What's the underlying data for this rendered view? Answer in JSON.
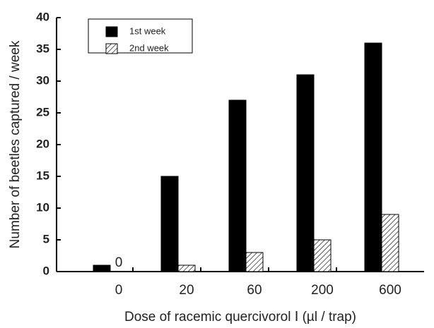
{
  "chart_data": {
    "type": "bar",
    "x_label": "Dose of racemic quercivorol Ⅰ (µl / trap)",
    "y_label": "Number of beetles captured / week",
    "categories": [
      "0",
      "20",
      "60",
      "200",
      "600"
    ],
    "series": [
      {
        "name": "1st week",
        "color": "#000000",
        "values": [
          1,
          15,
          27,
          31,
          36
        ]
      },
      {
        "name": "2nd week",
        "color": "hatched",
        "values": [
          0,
          1,
          3,
          5,
          9
        ]
      }
    ],
    "ylim": [
      0,
      40
    ],
    "yticks": [
      0,
      5,
      10,
      15,
      20,
      25,
      30,
      35,
      40
    ],
    "legend": "upper-left"
  }
}
